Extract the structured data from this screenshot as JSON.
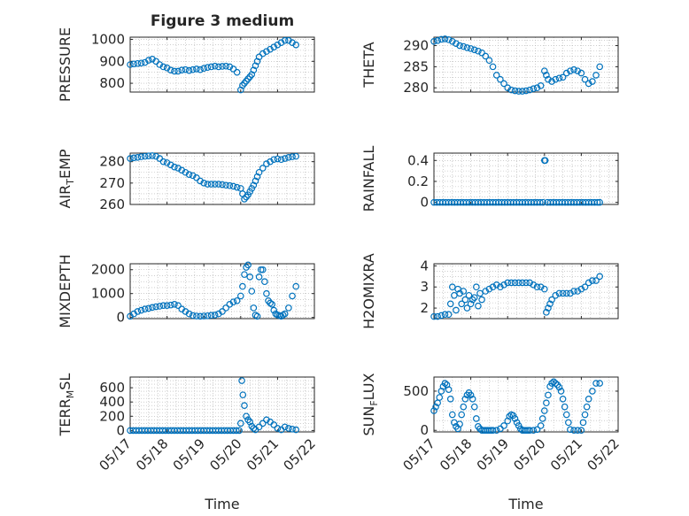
{
  "figure": {
    "title": "Figure 3 medium"
  },
  "colors": {
    "marker": "#0072BD",
    "axes": "#262626",
    "grid": "#b0b0b0",
    "background": "#ffffff"
  },
  "x_axis": {
    "label": "Time",
    "ticks": [
      "05/17",
      "05/18",
      "05/19",
      "05/20",
      "05/21",
      "05/22"
    ],
    "range": [
      0,
      5
    ]
  },
  "chart_data": [
    {
      "type": "scatter",
      "name": "PRESSURE",
      "ylabel": "PRESSURE",
      "ylim": [
        760,
        1010
      ],
      "yticks": [
        800,
        900,
        1000
      ],
      "grid": true,
      "x": [
        0.0,
        0.1,
        0.2,
        0.3,
        0.4,
        0.5,
        0.6,
        0.7,
        0.8,
        0.9,
        1.0,
        1.1,
        1.2,
        1.3,
        1.4,
        1.5,
        1.6,
        1.7,
        1.8,
        1.9,
        2.0,
        2.1,
        2.2,
        2.3,
        2.4,
        2.5,
        2.6,
        2.7,
        2.8,
        2.9,
        3.0,
        3.05,
        3.1,
        3.15,
        3.2,
        3.25,
        3.3,
        3.35,
        3.4,
        3.45,
        3.5,
        3.6,
        3.7,
        3.8,
        3.9,
        4.0,
        4.1,
        4.2,
        4.3,
        4.4,
        4.5
      ],
      "y": [
        885,
        888,
        890,
        892,
        895,
        905,
        910,
        900,
        885,
        875,
        870,
        860,
        855,
        855,
        860,
        862,
        858,
        862,
        865,
        862,
        868,
        872,
        875,
        878,
        875,
        877,
        878,
        875,
        865,
        850,
        770,
        790,
        800,
        810,
        820,
        830,
        840,
        860,
        880,
        900,
        920,
        935,
        945,
        955,
        965,
        975,
        985,
        995,
        995,
        985,
        975
      ]
    },
    {
      "type": "scatter",
      "name": "THETA",
      "ylabel": "THETA",
      "ylim": [
        279,
        292
      ],
      "yticks": [
        280,
        285,
        290
      ],
      "grid": true,
      "x": [
        0.0,
        0.1,
        0.2,
        0.3,
        0.4,
        0.5,
        0.6,
        0.7,
        0.8,
        0.9,
        1.0,
        1.1,
        1.2,
        1.3,
        1.4,
        1.5,
        1.6,
        1.7,
        1.8,
        1.9,
        2.0,
        2.1,
        2.2,
        2.3,
        2.4,
        2.5,
        2.6,
        2.7,
        2.8,
        2.9,
        3.0,
        3.05,
        3.1,
        3.2,
        3.3,
        3.4,
        3.5,
        3.6,
        3.7,
        3.8,
        3.9,
        4.0,
        4.1,
        4.2,
        4.3,
        4.4,
        4.5
      ],
      "y": [
        291,
        291.2,
        291.5,
        291.6,
        291.4,
        291,
        290.5,
        290,
        289.8,
        289.5,
        289.3,
        289,
        288.7,
        288.3,
        287.5,
        286.5,
        285,
        283,
        282,
        281,
        280,
        279.5,
        279.3,
        279.2,
        279.2,
        279.3,
        279.5,
        279.8,
        280,
        280.5,
        284,
        283,
        282,
        281.5,
        282,
        282.3,
        282.5,
        283.5,
        284,
        284.3,
        284,
        283.5,
        282,
        281,
        281.5,
        283,
        285
      ]
    },
    {
      "type": "scatter",
      "name": "AIR_TEMP",
      "ylabel": "AIR_TEMP",
      "ylim": [
        260,
        284
      ],
      "yticks": [
        260,
        270,
        280
      ],
      "grid": true,
      "x": [
        0.0,
        0.1,
        0.2,
        0.3,
        0.4,
        0.5,
        0.6,
        0.7,
        0.8,
        0.9,
        1.0,
        1.1,
        1.2,
        1.3,
        1.4,
        1.5,
        1.6,
        1.7,
        1.8,
        1.9,
        2.0,
        2.1,
        2.2,
        2.3,
        2.4,
        2.5,
        2.6,
        2.7,
        2.8,
        2.9,
        3.0,
        3.05,
        3.1,
        3.15,
        3.2,
        3.25,
        3.3,
        3.35,
        3.4,
        3.45,
        3.5,
        3.6,
        3.7,
        3.8,
        3.9,
        4.0,
        4.1,
        4.2,
        4.3,
        4.4,
        4.5
      ],
      "y": [
        281.5,
        281.8,
        282,
        282.3,
        282.5,
        282.7,
        282.8,
        282.5,
        281.5,
        280,
        279.5,
        278.5,
        277.5,
        277,
        276,
        275,
        274,
        273.5,
        272.5,
        271,
        270,
        269.5,
        269.5,
        269.5,
        269.5,
        269.3,
        269,
        268.8,
        268.5,
        268,
        267.5,
        265,
        262.5,
        263.5,
        264.5,
        266,
        267.5,
        269,
        271,
        273,
        275,
        277,
        279,
        280,
        281,
        281.3,
        281,
        281.5,
        282,
        282.3,
        282.5
      ]
    },
    {
      "type": "scatter",
      "name": "RAINFALL",
      "ylabel": "RAINFALL",
      "ylim": [
        -0.02,
        0.47
      ],
      "yticks": [
        0,
        0.2,
        0.4
      ],
      "yticklabels": [
        "0",
        "0.2",
        "0.4"
      ],
      "grid": true,
      "x": [
        0.0,
        0.08,
        0.16,
        0.24,
        0.32,
        0.4,
        0.48,
        0.56,
        0.64,
        0.72,
        0.8,
        0.88,
        0.96,
        1.04,
        1.12,
        1.2,
        1.28,
        1.36,
        1.44,
        1.52,
        1.6,
        1.68,
        1.76,
        1.84,
        1.92,
        2.0,
        2.08,
        2.16,
        2.24,
        2.32,
        2.4,
        2.48,
        2.56,
        2.64,
        2.72,
        2.8,
        2.88,
        2.96,
        3.0,
        3.02,
        3.08,
        3.16,
        3.24,
        3.32,
        3.4,
        3.48,
        3.56,
        3.64,
        3.72,
        3.8,
        3.88,
        3.96,
        4.04,
        4.12,
        4.2,
        4.28,
        4.36,
        4.44,
        4.5
      ],
      "y": [
        0,
        0,
        0,
        0,
        0,
        0,
        0,
        0,
        0,
        0,
        0,
        0,
        0,
        0,
        0,
        0,
        0,
        0,
        0,
        0,
        0,
        0,
        0,
        0,
        0,
        0,
        0,
        0,
        0,
        0,
        0,
        0,
        0,
        0,
        0,
        0,
        0,
        0,
        0.4,
        0.4,
        0,
        0,
        0,
        0,
        0,
        0,
        0,
        0,
        0,
        0,
        0,
        0,
        0,
        0,
        0,
        0,
        0,
        0,
        0
      ]
    },
    {
      "type": "scatter",
      "name": "MIXDEPTH",
      "ylabel": "MIXDEPTH",
      "ylim": [
        -50,
        2250
      ],
      "yticks": [
        0,
        1000,
        2000
      ],
      "grid": true,
      "x": [
        0.0,
        0.1,
        0.2,
        0.3,
        0.4,
        0.5,
        0.6,
        0.7,
        0.8,
        0.9,
        1.0,
        1.1,
        1.2,
        1.3,
        1.4,
        1.5,
        1.6,
        1.7,
        1.8,
        1.9,
        2.0,
        2.1,
        2.2,
        2.3,
        2.4,
        2.5,
        2.6,
        2.7,
        2.8,
        2.9,
        3.0,
        3.05,
        3.1,
        3.15,
        3.2,
        3.25,
        3.3,
        3.35,
        3.4,
        3.45,
        3.5,
        3.55,
        3.6,
        3.65,
        3.7,
        3.75,
        3.8,
        3.85,
        3.9,
        3.95,
        4.0,
        4.05,
        4.1,
        4.15,
        4.2,
        4.3,
        4.4,
        4.5
      ],
      "y": [
        50,
        150,
        250,
        300,
        350,
        380,
        420,
        450,
        470,
        500,
        500,
        520,
        550,
        500,
        350,
        250,
        150,
        80,
        60,
        50,
        60,
        70,
        90,
        100,
        150,
        250,
        400,
        550,
        650,
        700,
        900,
        1300,
        1800,
        2100,
        2200,
        1700,
        1100,
        400,
        100,
        50,
        1700,
        2000,
        2000,
        1500,
        1000,
        700,
        600,
        550,
        300,
        150,
        100,
        80,
        50,
        100,
        150,
        400,
        900,
        1300
      ]
    },
    {
      "type": "scatter",
      "name": "H2OMIXRA",
      "ylabel": "H2OMIXRA",
      "ylim": [
        1.5,
        4.1
      ],
      "yticks": [
        2,
        3,
        4
      ],
      "grid": true,
      "x": [
        0.0,
        0.1,
        0.2,
        0.3,
        0.4,
        0.45,
        0.5,
        0.55,
        0.6,
        0.65,
        0.7,
        0.75,
        0.8,
        0.85,
        0.9,
        0.95,
        1.0,
        1.05,
        1.1,
        1.15,
        1.2,
        1.25,
        1.3,
        1.4,
        1.5,
        1.6,
        1.7,
        1.8,
        1.9,
        2.0,
        2.1,
        2.2,
        2.3,
        2.4,
        2.5,
        2.6,
        2.7,
        2.8,
        2.9,
        3.0,
        3.05,
        3.1,
        3.15,
        3.2,
        3.3,
        3.4,
        3.5,
        3.6,
        3.7,
        3.8,
        3.9,
        4.0,
        4.1,
        4.2,
        4.3,
        4.4,
        4.5
      ],
      "y": [
        1.6,
        1.6,
        1.65,
        1.7,
        1.7,
        2.2,
        3.0,
        2.6,
        1.9,
        2.9,
        2.7,
        2.2,
        2.8,
        2.4,
        2.0,
        2.6,
        2.2,
        2.4,
        2.5,
        3.0,
        2.1,
        2.7,
        2.4,
        2.8,
        2.9,
        3.0,
        3.1,
        3.0,
        3.1,
        3.2,
        3.2,
        3.2,
        3.2,
        3.2,
        3.2,
        3.2,
        3.1,
        3.0,
        3.0,
        2.9,
        1.8,
        2.0,
        2.2,
        2.4,
        2.6,
        2.7,
        2.7,
        2.7,
        2.7,
        2.8,
        2.8,
        2.9,
        3.0,
        3.2,
        3.3,
        3.3,
        3.5
      ]
    },
    {
      "type": "scatter",
      "name": "TERR_MSL",
      "ylabel": "TERR_MSL",
      "ylim": [
        -20,
        750
      ],
      "yticks": [
        0,
        200,
        400,
        600
      ],
      "grid": true,
      "x": [
        0.0,
        0.08,
        0.16,
        0.24,
        0.32,
        0.4,
        0.48,
        0.56,
        0.64,
        0.72,
        0.8,
        0.88,
        0.96,
        1.04,
        1.12,
        1.2,
        1.28,
        1.36,
        1.44,
        1.52,
        1.6,
        1.68,
        1.76,
        1.84,
        1.92,
        2.0,
        2.08,
        2.16,
        2.24,
        2.32,
        2.4,
        2.48,
        2.56,
        2.64,
        2.72,
        2.8,
        2.88,
        2.96,
        3.0,
        3.03,
        3.06,
        3.1,
        3.15,
        3.2,
        3.25,
        3.3,
        3.35,
        3.4,
        3.5,
        3.6,
        3.7,
        3.8,
        3.9,
        4.0,
        4.1,
        4.2,
        4.3,
        4.4,
        4.5
      ],
      "y": [
        0,
        0,
        0,
        0,
        0,
        0,
        0,
        0,
        0,
        0,
        0,
        0,
        0,
        0,
        0,
        0,
        0,
        0,
        0,
        0,
        0,
        0,
        0,
        0,
        0,
        0,
        0,
        0,
        0,
        0,
        0,
        0,
        0,
        0,
        0,
        0,
        0,
        0,
        100,
        700,
        500,
        350,
        200,
        150,
        120,
        60,
        30,
        10,
        50,
        100,
        150,
        120,
        80,
        30,
        10,
        50,
        30,
        20,
        10
      ]
    },
    {
      "type": "scatter",
      "name": "SUN_FLUX",
      "ylabel": "SUN_FLUX",
      "ylim": [
        -20,
        680
      ],
      "yticks": [
        0,
        500
      ],
      "grid": true,
      "x": [
        0.0,
        0.05,
        0.1,
        0.15,
        0.2,
        0.25,
        0.3,
        0.35,
        0.4,
        0.45,
        0.5,
        0.55,
        0.6,
        0.65,
        0.7,
        0.75,
        0.8,
        0.85,
        0.9,
        0.95,
        1.0,
        1.05,
        1.1,
        1.15,
        1.2,
        1.25,
        1.3,
        1.35,
        1.4,
        1.45,
        1.5,
        1.55,
        1.6,
        1.7,
        1.8,
        1.9,
        2.0,
        2.05,
        2.1,
        2.15,
        2.2,
        2.25,
        2.3,
        2.35,
        2.4,
        2.45,
        2.5,
        2.55,
        2.6,
        2.7,
        2.8,
        2.9,
        2.95,
        3.0,
        3.05,
        3.1,
        3.15,
        3.2,
        3.25,
        3.3,
        3.35,
        3.4,
        3.45,
        3.5,
        3.55,
        3.6,
        3.65,
        3.7,
        3.8,
        3.9,
        4.0,
        4.05,
        4.1,
        4.15,
        4.2,
        4.3,
        4.4,
        4.5
      ],
      "y": [
        250,
        300,
        350,
        420,
        500,
        560,
        600,
        580,
        520,
        400,
        200,
        100,
        50,
        20,
        80,
        200,
        300,
        400,
        450,
        480,
        450,
        400,
        300,
        150,
        50,
        20,
        0,
        0,
        0,
        0,
        0,
        0,
        0,
        0,
        20,
        60,
        120,
        180,
        200,
        190,
        150,
        100,
        60,
        20,
        0,
        0,
        0,
        0,
        0,
        0,
        10,
        60,
        150,
        250,
        350,
        450,
        560,
        600,
        620,
        600,
        580,
        550,
        500,
        400,
        300,
        200,
        100,
        10,
        0,
        0,
        0,
        100,
        200,
        300,
        400,
        500,
        600,
        600
      ]
    }
  ]
}
